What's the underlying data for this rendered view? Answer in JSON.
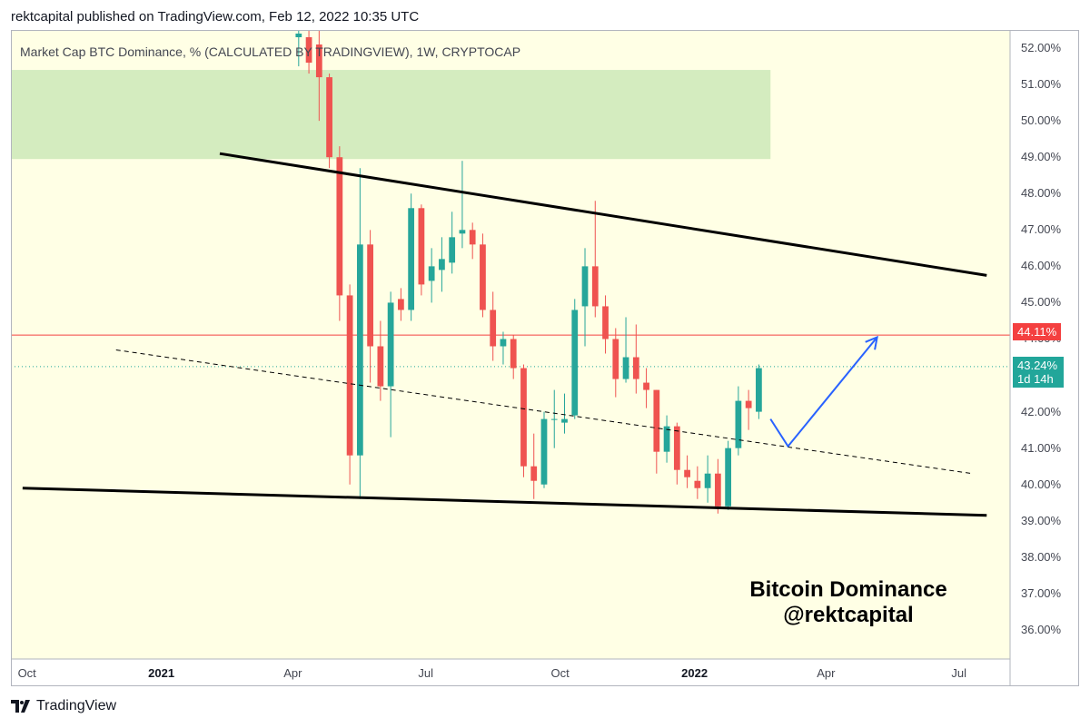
{
  "header": {
    "published": "rektcapital published on TradingView.com, Feb 12, 2022 10:35 UTC"
  },
  "legend": "Market Cap BTC Dominance, % (CALCULATED BY TRADINGVIEW), 1W, CRYPTOCAP",
  "price_badge": {
    "value": "44.11%",
    "color": "#f44040"
  },
  "current_badge": {
    "value": "43.24%",
    "countdown": "1d 14h",
    "color": "#22a69a"
  },
  "watermark": {
    "line1": "Bitcoin Dominance",
    "line2": "@rektcapital"
  },
  "footer": {
    "brand": "TradingView",
    "logo_icon": "tradingview-logo-icon"
  },
  "colors": {
    "up": "#26a69a",
    "down": "#ef5350",
    "pane": "#ffffe5",
    "zone": "#d4ecbf",
    "arrow": "#2962ff"
  },
  "chart_data": {
    "type": "candlestick",
    "title": "Market Cap BTC Dominance, % (CALCULATED BY TRADINGVIEW), 1W, CRYPTOCAP",
    "y_unit": "%",
    "ylim": [
      35.2,
      52.5
    ],
    "y_ticks": [
      "52.00%",
      "51.00%",
      "50.00%",
      "49.00%",
      "48.00%",
      "47.00%",
      "46.00%",
      "45.00%",
      "44.00%",
      "43.00%",
      "42.00%",
      "41.00%",
      "40.00%",
      "39.00%",
      "38.00%",
      "37.00%",
      "36.00%"
    ],
    "x_ticks": [
      {
        "label": "Oct",
        "date": "2020-10-01",
        "bold": false
      },
      {
        "label": "2021",
        "date": "2021-01-01",
        "bold": true
      },
      {
        "label": "Apr",
        "date": "2021-04-01",
        "bold": false
      },
      {
        "label": "Jul",
        "date": "2021-07-01",
        "bold": false
      },
      {
        "label": "Oct",
        "date": "2021-10-01",
        "bold": false
      },
      {
        "label": "2022",
        "date": "2022-01-01",
        "bold": true
      },
      {
        "label": "Apr",
        "date": "2022-04-01",
        "bold": false
      },
      {
        "label": "Jul",
        "date": "2022-07-01",
        "bold": false
      }
    ],
    "xlim": [
      "2020-09-20",
      "2022-08-05"
    ],
    "candles": [
      {
        "date": "2021-04-05",
        "o": 52.3,
        "h": 52.5,
        "l": 51.5,
        "c": 52.4
      },
      {
        "date": "2021-04-12",
        "o": 52.3,
        "h": 52.5,
        "l": 51.3,
        "c": 51.6
      },
      {
        "date": "2021-04-19",
        "o": 52.1,
        "h": 52.5,
        "l": 50.0,
        "c": 51.2
      },
      {
        "date": "2021-04-26",
        "o": 51.2,
        "h": 51.3,
        "l": 48.7,
        "c": 49.0
      },
      {
        "date": "2021-05-03",
        "o": 49.0,
        "h": 49.3,
        "l": 44.5,
        "c": 45.2
      },
      {
        "date": "2021-05-10",
        "o": 45.2,
        "h": 45.5,
        "l": 40.0,
        "c": 40.8
      },
      {
        "date": "2021-05-17",
        "o": 40.8,
        "h": 48.7,
        "l": 39.6,
        "c": 46.6
      },
      {
        "date": "2021-05-24",
        "o": 46.6,
        "h": 47.0,
        "l": 42.8,
        "c": 43.8
      },
      {
        "date": "2021-05-31",
        "o": 43.8,
        "h": 44.5,
        "l": 42.3,
        "c": 42.7
      },
      {
        "date": "2021-06-07",
        "o": 42.7,
        "h": 45.3,
        "l": 41.3,
        "c": 45.0
      },
      {
        "date": "2021-06-14",
        "o": 45.1,
        "h": 45.4,
        "l": 44.5,
        "c": 44.8
      },
      {
        "date": "2021-06-21",
        "o": 44.8,
        "h": 48.0,
        "l": 44.5,
        "c": 47.6
      },
      {
        "date": "2021-06-28",
        "o": 47.6,
        "h": 47.7,
        "l": 45.2,
        "c": 45.5
      },
      {
        "date": "2021-07-05",
        "o": 45.6,
        "h": 46.5,
        "l": 45.0,
        "c": 46.0
      },
      {
        "date": "2021-07-12",
        "o": 45.9,
        "h": 46.8,
        "l": 45.3,
        "c": 46.2
      },
      {
        "date": "2021-07-19",
        "o": 46.1,
        "h": 47.5,
        "l": 45.8,
        "c": 46.8
      },
      {
        "date": "2021-07-26",
        "o": 46.9,
        "h": 48.9,
        "l": 46.5,
        "c": 47.0
      },
      {
        "date": "2021-08-02",
        "o": 47.0,
        "h": 47.2,
        "l": 46.2,
        "c": 46.6
      },
      {
        "date": "2021-08-09",
        "o": 46.6,
        "h": 46.9,
        "l": 44.6,
        "c": 44.8
      },
      {
        "date": "2021-08-16",
        "o": 44.8,
        "h": 45.3,
        "l": 43.4,
        "c": 43.8
      },
      {
        "date": "2021-08-23",
        "o": 43.8,
        "h": 44.2,
        "l": 43.3,
        "c": 44.0
      },
      {
        "date": "2021-08-30",
        "o": 44.0,
        "h": 44.1,
        "l": 42.9,
        "c": 43.2
      },
      {
        "date": "2021-09-06",
        "o": 43.2,
        "h": 43.3,
        "l": 40.2,
        "c": 40.5
      },
      {
        "date": "2021-09-13",
        "o": 40.5,
        "h": 41.4,
        "l": 39.6,
        "c": 40.1
      },
      {
        "date": "2021-09-20",
        "o": 40.0,
        "h": 42.0,
        "l": 39.9,
        "c": 41.8
      },
      {
        "date": "2021-09-27",
        "o": 41.8,
        "h": 42.6,
        "l": 41.0,
        "c": 41.8
      },
      {
        "date": "2021-10-04",
        "o": 41.7,
        "h": 42.5,
        "l": 41.4,
        "c": 41.8
      },
      {
        "date": "2021-10-11",
        "o": 41.9,
        "h": 45.1,
        "l": 41.8,
        "c": 44.8
      },
      {
        "date": "2021-10-18",
        "o": 44.9,
        "h": 46.5,
        "l": 43.8,
        "c": 46.0
      },
      {
        "date": "2021-10-25",
        "o": 46.0,
        "h": 47.8,
        "l": 44.6,
        "c": 44.9
      },
      {
        "date": "2021-11-01",
        "o": 44.9,
        "h": 45.2,
        "l": 43.6,
        "c": 44.0
      },
      {
        "date": "2021-11-08",
        "o": 44.0,
        "h": 44.3,
        "l": 42.4,
        "c": 42.9
      },
      {
        "date": "2021-11-15",
        "o": 42.9,
        "h": 44.6,
        "l": 42.8,
        "c": 43.5
      },
      {
        "date": "2021-11-22",
        "o": 43.5,
        "h": 44.4,
        "l": 42.5,
        "c": 42.9
      },
      {
        "date": "2021-11-29",
        "o": 42.8,
        "h": 43.2,
        "l": 42.1,
        "c": 42.6
      },
      {
        "date": "2021-12-06",
        "o": 42.6,
        "h": 42.6,
        "l": 40.3,
        "c": 40.9
      },
      {
        "date": "2021-12-13",
        "o": 40.9,
        "h": 41.9,
        "l": 40.6,
        "c": 41.6
      },
      {
        "date": "2021-12-20",
        "o": 41.6,
        "h": 41.7,
        "l": 40.0,
        "c": 40.4
      },
      {
        "date": "2021-12-27",
        "o": 40.4,
        "h": 40.8,
        "l": 39.9,
        "c": 40.2
      },
      {
        "date": "2022-01-03",
        "o": 40.1,
        "h": 40.5,
        "l": 39.6,
        "c": 39.9
      },
      {
        "date": "2022-01-10",
        "o": 39.9,
        "h": 40.8,
        "l": 39.5,
        "c": 40.3
      },
      {
        "date": "2022-01-17",
        "o": 40.3,
        "h": 40.7,
        "l": 39.2,
        "c": 39.4
      },
      {
        "date": "2022-01-24",
        "o": 39.4,
        "h": 41.2,
        "l": 39.3,
        "c": 41.0
      },
      {
        "date": "2022-01-31",
        "o": 41.0,
        "h": 42.7,
        "l": 40.8,
        "c": 42.3
      },
      {
        "date": "2022-02-07",
        "o": 42.3,
        "h": 42.6,
        "l": 41.5,
        "c": 42.1
      },
      {
        "date": "2022-02-14",
        "o": 42.0,
        "h": 43.3,
        "l": 41.8,
        "c": 43.2
      }
    ],
    "candle_width_days": 4.2,
    "levels": [
      {
        "name": "horizontal-resistance",
        "value": 44.11,
        "style": "solid",
        "color": "#f44040"
      },
      {
        "name": "current-price",
        "value": 43.24,
        "style": "dotted",
        "color": "#22a69a"
      }
    ],
    "trendlines": [
      {
        "name": "upper-trendline",
        "from": [
          "2021-02-10",
          49.1
        ],
        "to": [
          "2022-07-20",
          45.75
        ],
        "style": "solid"
      },
      {
        "name": "lower-trendline",
        "from": [
          "2020-09-28",
          39.9
        ],
        "to": [
          "2022-07-20",
          39.15
        ],
        "style": "solid"
      },
      {
        "name": "mid-trendline",
        "from": [
          "2020-12-01",
          43.7
        ],
        "to": [
          "2022-07-10",
          40.3
        ],
        "style": "dashed"
      }
    ],
    "zone": {
      "from": "2020-09-20",
      "to": "2022-02-22",
      "low": 48.95,
      "high": 51.4
    },
    "projection": [
      [
        "2022-02-22",
        41.8
      ],
      [
        "2022-03-06",
        41.05
      ],
      [
        "2022-05-06",
        44.05
      ]
    ]
  }
}
